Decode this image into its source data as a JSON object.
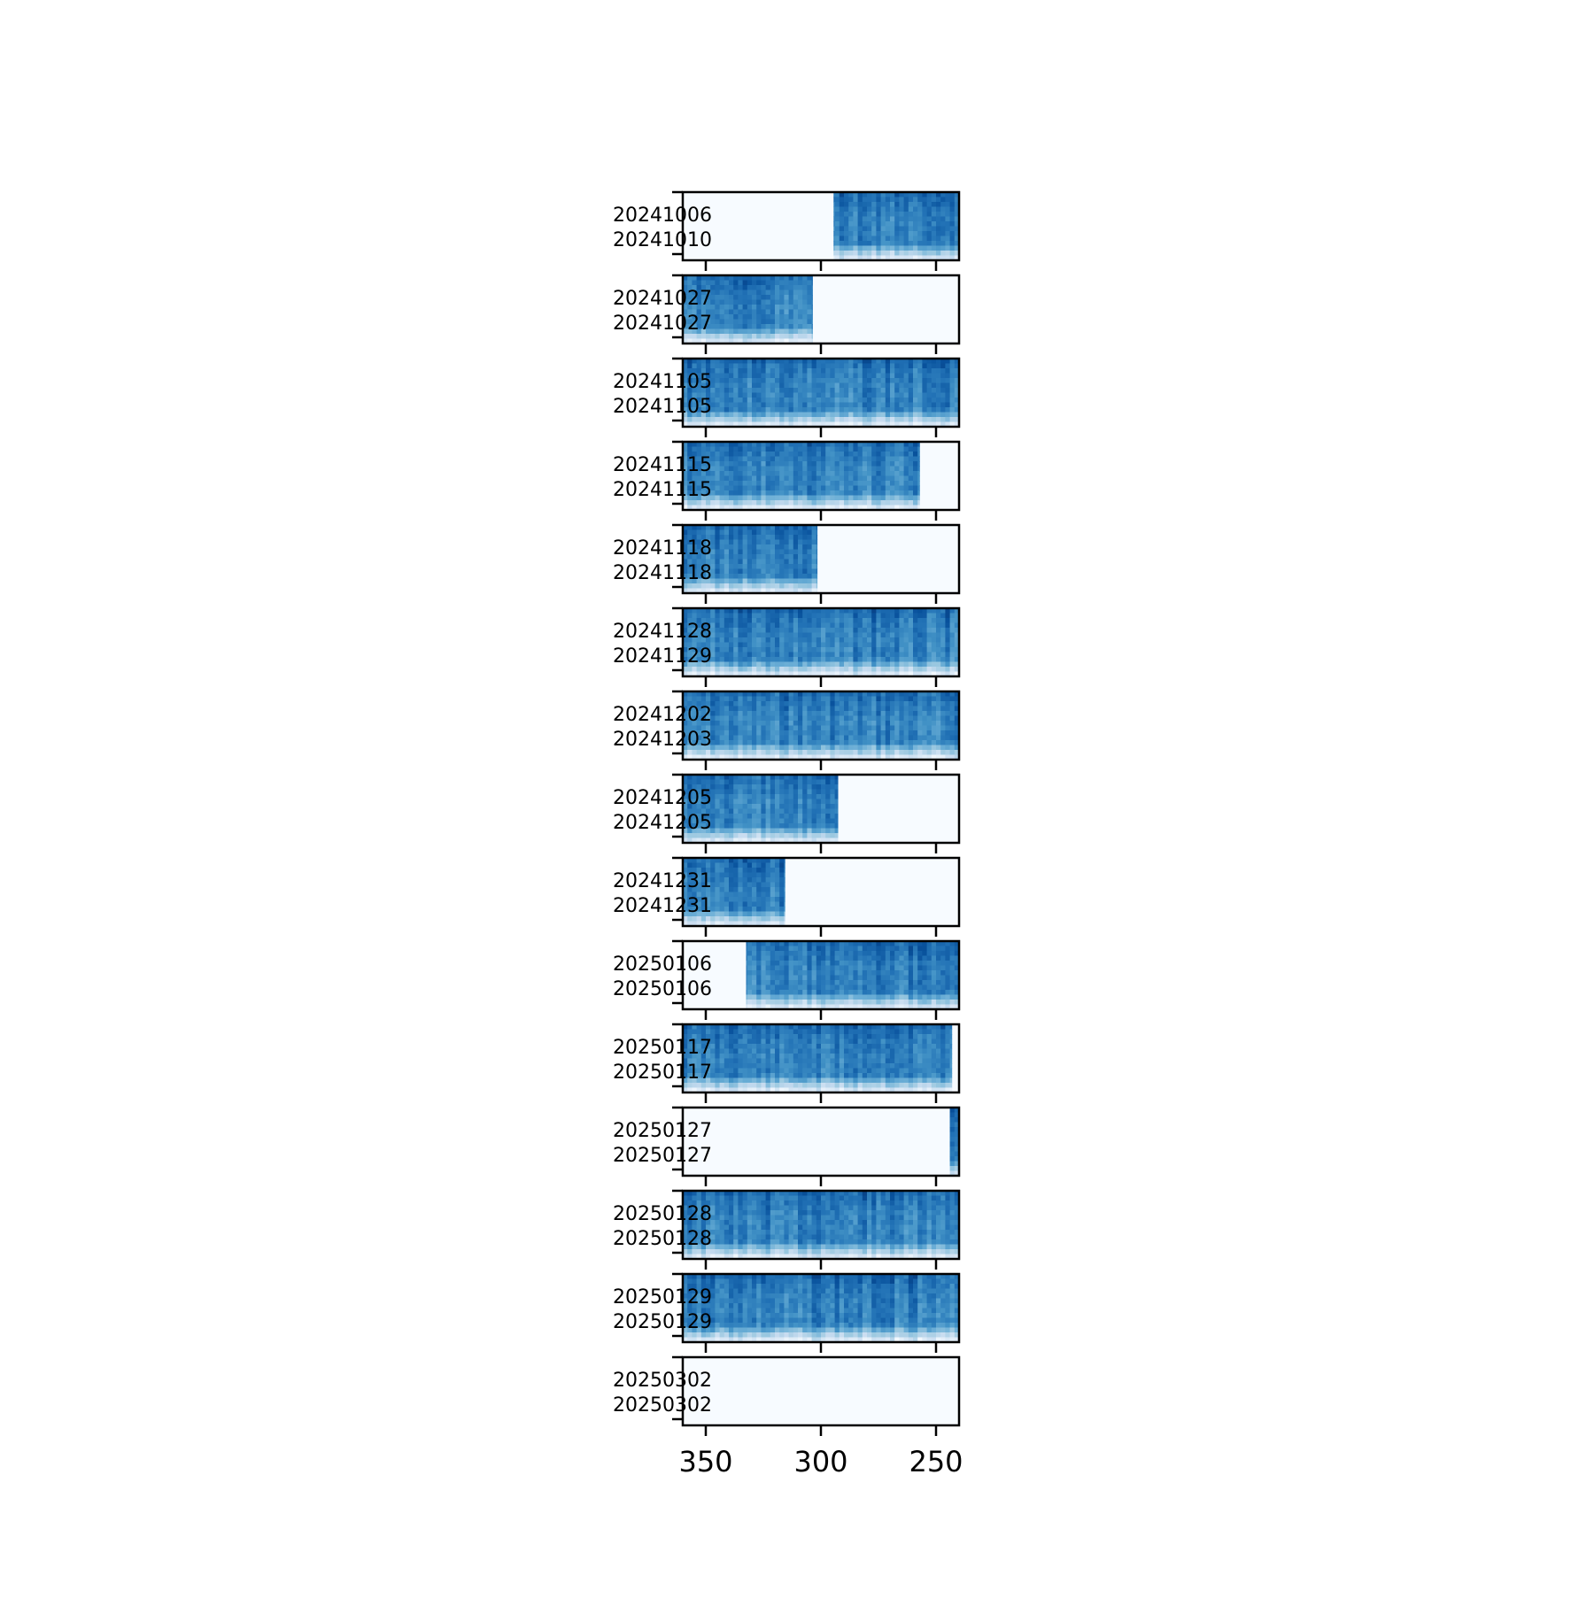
{
  "chart_data": {
    "type": "heatmap",
    "title": "",
    "xlabel": "",
    "ylabel": "",
    "xlim": [
      360,
      240
    ],
    "x_ticks": [
      "350",
      "300",
      "250"
    ],
    "x_tick_values": [
      350,
      300,
      250
    ],
    "colormap": "Blues",
    "colors": [
      "#f7fbff",
      "#deebf7",
      "#c6dbef",
      "#9ecae1",
      "#6baed6",
      "#4292c6",
      "#2171b5",
      "#08519c",
      "#08306b"
    ],
    "grid": false,
    "legend": "none",
    "panels": [
      {
        "label_top": "20241006",
        "label_bottom": "20241010",
        "coverage": [
          294.5,
          240
        ],
        "seed": 1
      },
      {
        "label_top": "20241027",
        "label_bottom": "20241027",
        "coverage": [
          360,
          303.5
        ],
        "seed": 2
      },
      {
        "label_top": "20241105",
        "label_bottom": "20241105",
        "coverage": [
          360,
          240
        ],
        "seed": 3
      },
      {
        "label_top": "20241115",
        "label_bottom": "20241115",
        "coverage": [
          360,
          257
        ],
        "seed": 4
      },
      {
        "label_top": "20241118",
        "label_bottom": "20241118",
        "coverage": [
          360,
          301.5
        ],
        "seed": 5
      },
      {
        "label_top": "20241128",
        "label_bottom": "20241129",
        "coverage": [
          360,
          240
        ],
        "seed": 6
      },
      {
        "label_top": "20241202",
        "label_bottom": "20241203",
        "coverage": [
          360,
          240
        ],
        "seed": 7
      },
      {
        "label_top": "20241205",
        "label_bottom": "20241205",
        "coverage": [
          360,
          292.5
        ],
        "seed": 8
      },
      {
        "label_top": "20241231",
        "label_bottom": "20241231",
        "coverage": [
          360,
          315.5
        ],
        "seed": 9
      },
      {
        "label_top": "20250106",
        "label_bottom": "20250106",
        "coverage": [
          332.5,
          240
        ],
        "seed": 10
      },
      {
        "label_top": "20250117",
        "label_bottom": "20250117",
        "coverage": [
          360,
          243
        ],
        "seed": 11
      },
      {
        "label_top": "20250127",
        "label_bottom": "20250127",
        "coverage": [
          244,
          240
        ],
        "seed": 12
      },
      {
        "label_top": "20250128",
        "label_bottom": "20250128",
        "coverage": [
          360,
          240
        ],
        "seed": 13
      },
      {
        "label_top": "20250129",
        "label_bottom": "20250129",
        "coverage": [
          360,
          240
        ],
        "seed": 14
      },
      {
        "label_top": "20250302",
        "label_bottom": "20250302",
        "coverage": [],
        "seed": 15
      }
    ]
  }
}
